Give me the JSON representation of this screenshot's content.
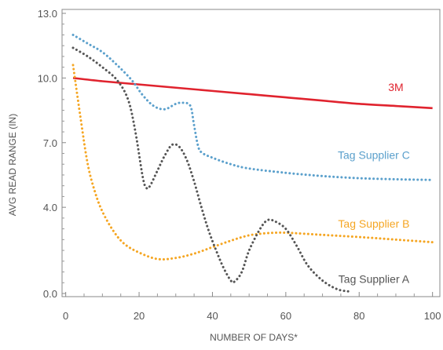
{
  "chart_data": {
    "type": "line",
    "title": "",
    "xlabel": "NUMBER OF DAYS*",
    "ylabel": "AVG READ RANGE (IN)",
    "xlim": [
      -1,
      102
    ],
    "ylim": [
      0,
      13
    ],
    "xticks": [
      0,
      20,
      40,
      60,
      80,
      100
    ],
    "xtick_labels": [
      "0",
      "20",
      "40",
      "60",
      "80",
      "100"
    ],
    "yticks": [
      0,
      4,
      7,
      10,
      13
    ],
    "ytick_labels": [
      "0.0",
      "4.0",
      "7.0",
      "10.0",
      "13.0"
    ],
    "grid": false,
    "legend": "inline labels",
    "series": [
      {
        "name": "3M",
        "color": "#e0232e",
        "style": "solid",
        "x": [
          2,
          10,
          20,
          30,
          40,
          50,
          60,
          70,
          80,
          90,
          100
        ],
        "y": [
          10.0,
          9.85,
          9.7,
          9.55,
          9.4,
          9.25,
          9.1,
          8.95,
          8.8,
          8.7,
          8.6
        ]
      },
      {
        "name": "Tag Supplier C",
        "color": "#5ba0cc",
        "style": "dotted",
        "x": [
          2,
          6,
          10,
          14,
          18,
          21,
          24,
          27,
          30,
          32,
          34,
          35,
          36,
          37,
          40,
          45,
          50,
          60,
          70,
          80,
          90,
          100
        ],
        "y": [
          12.0,
          11.6,
          11.2,
          10.6,
          9.9,
          9.2,
          8.7,
          8.55,
          8.8,
          8.85,
          8.7,
          7.8,
          6.9,
          6.55,
          6.3,
          6.0,
          5.8,
          5.6,
          5.45,
          5.35,
          5.3,
          5.27
        ]
      },
      {
        "name": "Tag Supplier B",
        "color": "#f5a623",
        "style": "dotted",
        "x": [
          2,
          4,
          6,
          8,
          10,
          13,
          16,
          20,
          25,
          30,
          35,
          40,
          45,
          50,
          55,
          60,
          70,
          80,
          90,
          100
        ],
        "y": [
          10.6,
          8.2,
          6.0,
          4.7,
          3.8,
          2.9,
          2.3,
          1.9,
          1.6,
          1.65,
          1.85,
          2.15,
          2.45,
          2.7,
          2.8,
          2.82,
          2.72,
          2.62,
          2.5,
          2.38
        ]
      },
      {
        "name": "Tag Supplier A",
        "color": "#555555",
        "style": "dotted",
        "x": [
          2,
          6,
          10,
          14,
          17,
          19,
          21,
          22,
          23,
          25,
          27,
          29,
          31,
          33,
          35,
          37,
          39,
          41,
          43,
          45,
          46,
          48,
          50,
          53,
          55,
          57,
          60,
          63,
          66,
          70,
          74,
          77
        ],
        "y": [
          11.4,
          11.0,
          10.5,
          9.9,
          9.0,
          7.5,
          5.4,
          4.9,
          5.0,
          5.7,
          6.4,
          6.9,
          6.8,
          6.2,
          5.2,
          4.0,
          2.9,
          2.0,
          1.2,
          0.6,
          0.55,
          1.0,
          2.0,
          3.0,
          3.4,
          3.35,
          3.0,
          2.2,
          1.3,
          0.6,
          0.2,
          0.1
        ]
      }
    ],
    "annotations": [
      {
        "text": "3M",
        "series": "3M",
        "x": 90,
        "y": 9.4
      },
      {
        "text": "Tag Supplier C",
        "series": "Tag Supplier C",
        "x": 84,
        "y": 6.25
      },
      {
        "text": "Tag Supplier B",
        "series": "Tag Supplier B",
        "x": 84,
        "y": 3.05
      },
      {
        "text": "Tag Supplier A",
        "series": "Tag Supplier A",
        "x": 84,
        "y": 0.5
      }
    ]
  }
}
